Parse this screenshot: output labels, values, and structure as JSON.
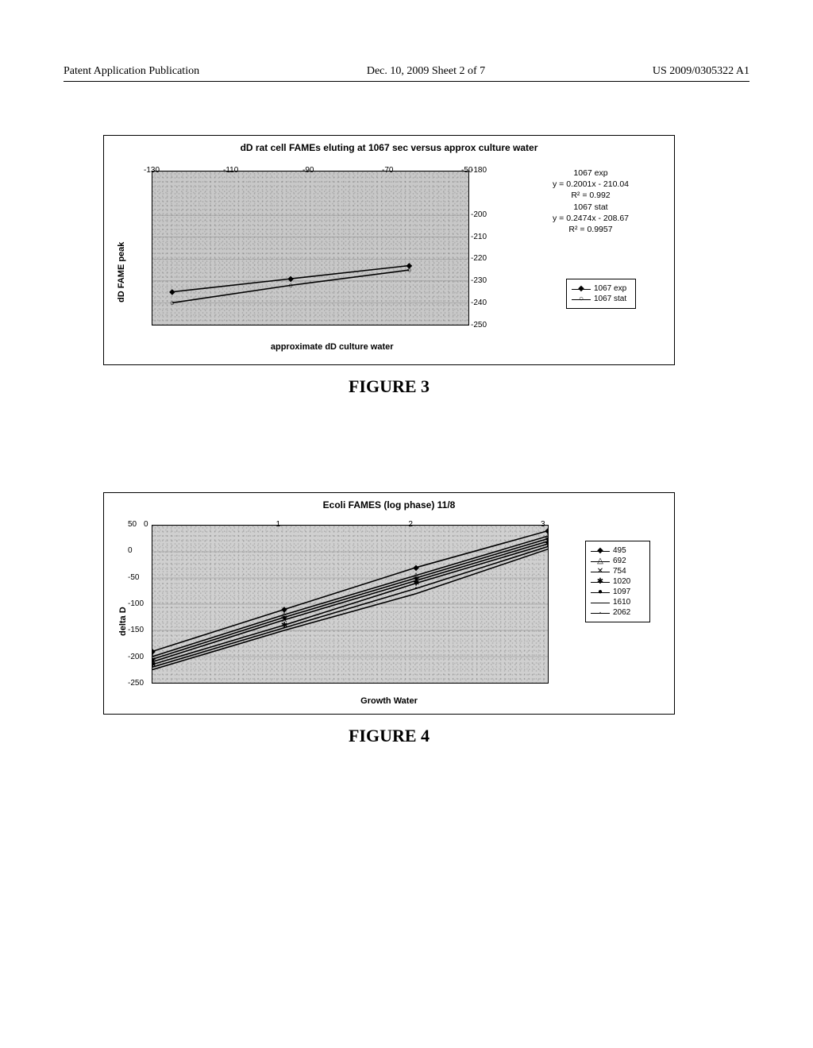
{
  "header": {
    "left": "Patent Application Publication",
    "center": "Dec. 10, 2009  Sheet 2 of 7",
    "right": "US 2009/0305322 A1"
  },
  "figure3": {
    "caption": "FIGURE 3",
    "chart": {
      "type": "scatter-line",
      "title": "dD rat cell FAMEs eluting at 1067 sec versus approx culture water",
      "ylabel": "dD FAME peak",
      "xlabel": "approximate dD culture water",
      "background_color": "#c8c8c8",
      "border_color": "#000000",
      "xlim": [
        -130,
        -50
      ],
      "ylim": [
        -250,
        -180
      ],
      "xticks": [
        -130,
        -110,
        -90,
        -70,
        -50
      ],
      "yticks": [
        -180,
        -200,
        -210,
        -220,
        -230,
        -240,
        -250
      ],
      "equations": {
        "series1_label": "1067 exp",
        "series1_eq": "y = 0.2001x - 210.04",
        "series1_r2": "R² = 0.992",
        "series2_label": "1067 stat",
        "series2_eq": "y = 0.2474x - 208.67",
        "series2_r2": "R² = 0.9957"
      },
      "series": [
        {
          "name": "1067 exp",
          "marker": "◆",
          "color": "#000000",
          "x": [
            -125,
            -95,
            -65
          ],
          "y": [
            -235,
            -229,
            -223
          ]
        },
        {
          "name": "1067 stat",
          "marker": "○",
          "color": "#000000",
          "x": [
            -125,
            -95,
            -65
          ],
          "y": [
            -240,
            -232,
            -225
          ]
        }
      ]
    }
  },
  "figure4": {
    "caption": "FIGURE 4",
    "chart": {
      "type": "line",
      "title": "Ecoli FAMES (log phase) 11/8",
      "ylabel": "delta D",
      "xlabel": "Growth Water",
      "background_color": "#d0d0d0",
      "border_color": "#000000",
      "xlim": [
        0,
        3
      ],
      "ylim": [
        -250,
        50
      ],
      "xticks": [
        0,
        1,
        2,
        3
      ],
      "yticks": [
        50,
        0,
        -50,
        -100,
        -150,
        -200,
        -250
      ],
      "ytick_step": 50,
      "legend_items": [
        {
          "label": "495",
          "marker": "◆"
        },
        {
          "label": "692",
          "marker": "△"
        },
        {
          "label": "754",
          "marker": "✕"
        },
        {
          "label": "1020",
          "marker": "✱"
        },
        {
          "label": "1097",
          "marker": "●"
        },
        {
          "label": "1610",
          "marker": ""
        },
        {
          "label": "2062",
          "marker": "·"
        }
      ],
      "series": [
        {
          "name": "495",
          "marker": "◆",
          "x": [
            0,
            1,
            2,
            3
          ],
          "y": [
            -190,
            -110,
            -30,
            40
          ]
        },
        {
          "name": "692",
          "marker": "△",
          "x": [
            0,
            1,
            2,
            3
          ],
          "y": [
            -200,
            -120,
            -45,
            30
          ]
        },
        {
          "name": "754",
          "marker": "✕",
          "x": [
            0,
            1,
            2,
            3
          ],
          "y": [
            -210,
            -130,
            -55,
            20
          ]
        },
        {
          "name": "1020",
          "marker": "✱",
          "x": [
            0,
            1,
            2,
            3
          ],
          "y": [
            -215,
            -140,
            -60,
            15
          ]
        },
        {
          "name": "1097",
          "marker": "●",
          "x": [
            0,
            1,
            2,
            3
          ],
          "y": [
            -205,
            -125,
            -50,
            25
          ]
        },
        {
          "name": "1610",
          "marker": "",
          "x": [
            0,
            1,
            2,
            3
          ],
          "y": [
            -220,
            -145,
            -70,
            10
          ]
        },
        {
          "name": "2062",
          "marker": "·",
          "x": [
            0,
            1,
            2,
            3
          ],
          "y": [
            -225,
            -150,
            -80,
            5
          ]
        }
      ]
    }
  }
}
